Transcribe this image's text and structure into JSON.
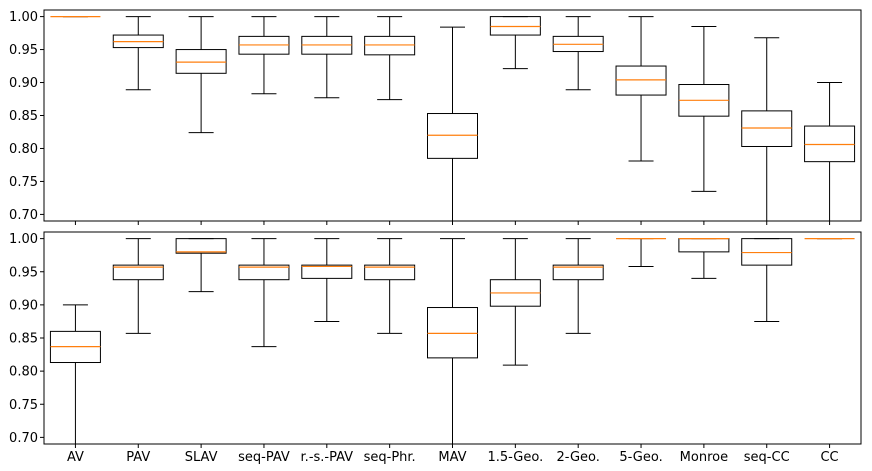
{
  "chart_data": [
    {
      "type": "box",
      "panel": "top",
      "title": "",
      "xlabel": "",
      "ylabel": "",
      "ylim": [
        0.69,
        1.01
      ],
      "yticks": [
        "0.70",
        "0.75",
        "0.80",
        "0.85",
        "0.90",
        "0.95",
        "1.00"
      ],
      "show_xtick_labels": false,
      "grid": false,
      "median_color": "#ff7f0e",
      "categories": [
        "AV",
        "PAV",
        "SLAV",
        "seq-PAV",
        "r.-s.-PAV",
        "seq-Phr.",
        "MAV",
        "1.5-Geo.",
        "2-Geo.",
        "5-Geo.",
        "Monroe",
        "seq-CC",
        "CC"
      ],
      "boxes": [
        {
          "whislo": 1.0,
          "q1": 1.0,
          "med": 1.0,
          "q3": 1.0,
          "whishi": 1.0
        },
        {
          "whislo": 0.889,
          "q1": 0.953,
          "med": 0.962,
          "q3": 0.972,
          "whishi": 1.0
        },
        {
          "whislo": 0.824,
          "q1": 0.914,
          "med": 0.931,
          "q3": 0.95,
          "whishi": 1.0
        },
        {
          "whislo": 0.883,
          "q1": 0.943,
          "med": 0.957,
          "q3": 0.97,
          "whishi": 1.0
        },
        {
          "whislo": 0.877,
          "q1": 0.943,
          "med": 0.957,
          "q3": 0.97,
          "whishi": 1.0
        },
        {
          "whislo": 0.874,
          "q1": 0.942,
          "med": 0.957,
          "q3": 0.97,
          "whishi": 1.0
        },
        {
          "whislo": 0.69,
          "q1": 0.785,
          "med": 0.82,
          "q3": 0.853,
          "whishi": 0.984
        },
        {
          "whislo": 0.921,
          "q1": 0.972,
          "med": 0.985,
          "q3": 1.0,
          "whishi": 1.0
        },
        {
          "whislo": 0.889,
          "q1": 0.947,
          "med": 0.958,
          "q3": 0.97,
          "whishi": 1.0
        },
        {
          "whislo": 0.781,
          "q1": 0.881,
          "med": 0.904,
          "q3": 0.925,
          "whishi": 1.0
        },
        {
          "whislo": 0.735,
          "q1": 0.849,
          "med": 0.873,
          "q3": 0.897,
          "whishi": 0.985
        },
        {
          "whislo": 0.69,
          "q1": 0.803,
          "med": 0.831,
          "q3": 0.857,
          "whishi": 0.968
        },
        {
          "whislo": 0.69,
          "q1": 0.78,
          "med": 0.806,
          "q3": 0.834,
          "whishi": 0.9
        }
      ]
    },
    {
      "type": "box",
      "panel": "bottom",
      "title": "",
      "xlabel": "",
      "ylabel": "",
      "ylim": [
        0.69,
        1.01
      ],
      "yticks": [
        "0.70",
        "0.75",
        "0.80",
        "0.85",
        "0.90",
        "0.95",
        "1.00"
      ],
      "show_xtick_labels": true,
      "grid": false,
      "median_color": "#ff7f0e",
      "categories": [
        "AV",
        "PAV",
        "SLAV",
        "seq-PAV",
        "r.-s.-PAV",
        "seq-Phr.",
        "MAV",
        "1.5-Geo.",
        "2-Geo.",
        "5-Geo.",
        "Monroe",
        "seq-CC",
        "CC"
      ],
      "boxes": [
        {
          "whislo": 0.69,
          "q1": 0.813,
          "med": 0.837,
          "q3": 0.86,
          "whishi": 0.9
        },
        {
          "whislo": 0.857,
          "q1": 0.938,
          "med": 0.957,
          "q3": 0.96,
          "whishi": 1.0
        },
        {
          "whislo": 0.92,
          "q1": 0.978,
          "med": 0.98,
          "q3": 1.0,
          "whishi": 1.0
        },
        {
          "whislo": 0.837,
          "q1": 0.938,
          "med": 0.957,
          "q3": 0.96,
          "whishi": 1.0
        },
        {
          "whislo": 0.875,
          "q1": 0.94,
          "med": 0.958,
          "q3": 0.96,
          "whishi": 1.0
        },
        {
          "whislo": 0.857,
          "q1": 0.938,
          "med": 0.957,
          "q3": 0.96,
          "whishi": 1.0
        },
        {
          "whislo": 0.69,
          "q1": 0.82,
          "med": 0.857,
          "q3": 0.896,
          "whishi": 1.0
        },
        {
          "whislo": 0.809,
          "q1": 0.898,
          "med": 0.918,
          "q3": 0.938,
          "whishi": 1.0
        },
        {
          "whislo": 0.857,
          "q1": 0.938,
          "med": 0.957,
          "q3": 0.96,
          "whishi": 1.0
        },
        {
          "whislo": 0.958,
          "q1": 1.0,
          "med": 1.0,
          "q3": 1.0,
          "whishi": 1.0
        },
        {
          "whislo": 0.94,
          "q1": 0.98,
          "med": 1.0,
          "q3": 1.0,
          "whishi": 1.0
        },
        {
          "whislo": 0.875,
          "q1": 0.96,
          "med": 0.979,
          "q3": 1.0,
          "whishi": 1.0
        },
        {
          "whislo": 1.0,
          "q1": 1.0,
          "med": 1.0,
          "q3": 1.0,
          "whishi": 1.0
        }
      ]
    }
  ]
}
